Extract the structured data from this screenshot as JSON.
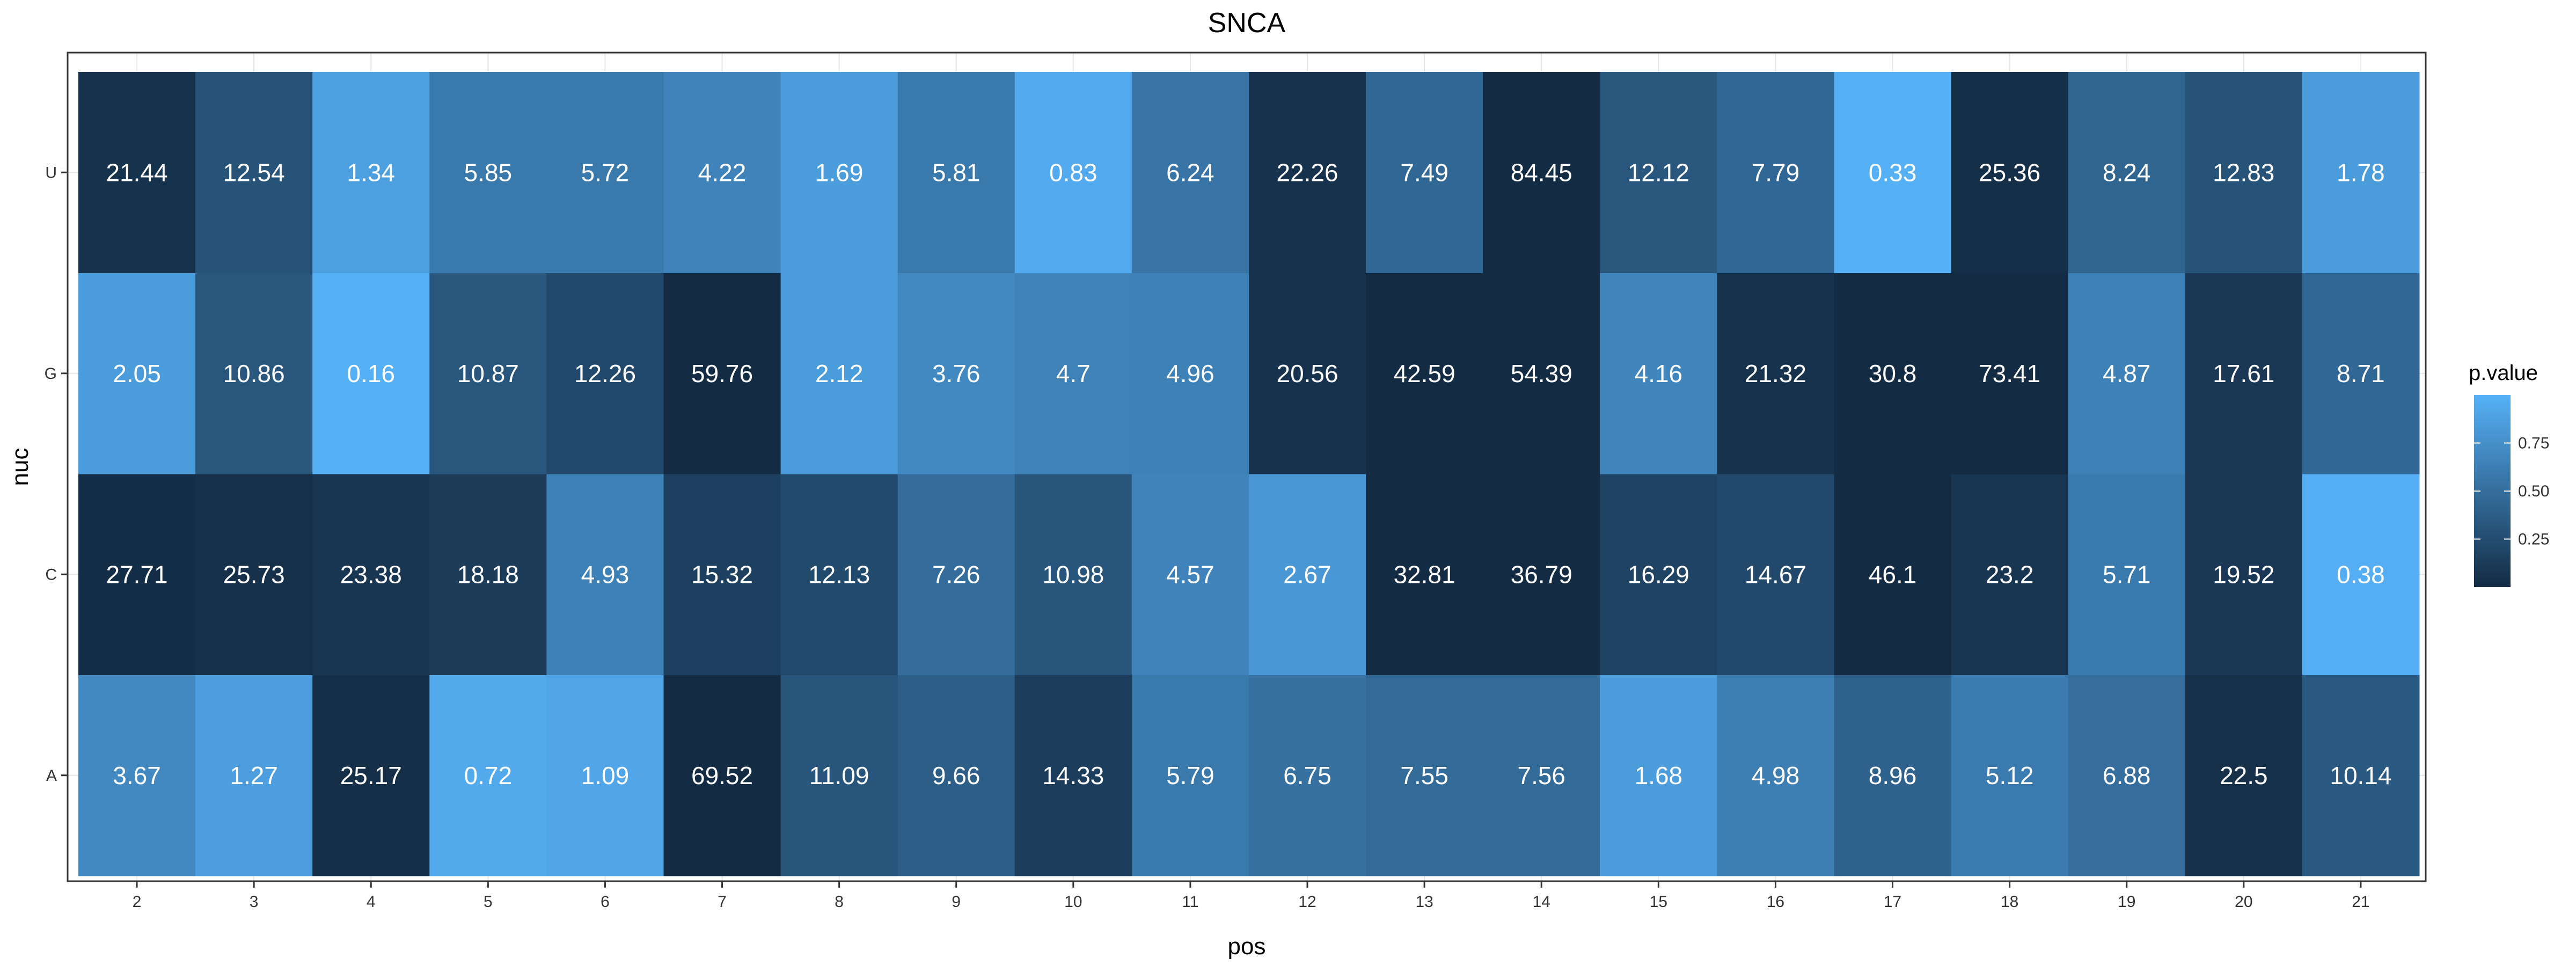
{
  "chart_data": {
    "type": "heatmap",
    "title": "SNCA",
    "xlabel": "pos",
    "ylabel": "nuc",
    "x": [
      "2",
      "3",
      "4",
      "5",
      "6",
      "7",
      "8",
      "9",
      "10",
      "11",
      "12",
      "13",
      "14",
      "15",
      "16",
      "17",
      "18",
      "19",
      "20",
      "21"
    ],
    "y": [
      "A",
      "C",
      "G",
      "U"
    ],
    "labels": {
      "U": [
        "21.44",
        "12.54",
        "1.34",
        "5.85",
        "5.72",
        "4.22",
        "1.69",
        "5.81",
        "0.83",
        "6.24",
        "22.26",
        "7.49",
        "84.45",
        "12.12",
        "7.79",
        "0.33",
        "25.36",
        "8.24",
        "12.83",
        "1.78"
      ],
      "G": [
        "2.05",
        "10.86",
        "0.16",
        "10.87",
        "12.26",
        "59.76",
        "2.12",
        "3.76",
        "4.7",
        "4.96",
        "20.56",
        "42.59",
        "54.39",
        "4.16",
        "21.32",
        "30.8",
        "73.41",
        "4.87",
        "17.61",
        "8.71"
      ],
      "C": [
        "27.71",
        "25.73",
        "23.38",
        "18.18",
        "4.93",
        "15.32",
        "12.13",
        "7.26",
        "10.98",
        "4.57",
        "2.67",
        "32.81",
        "36.79",
        "16.29",
        "14.67",
        "46.1",
        "23.2",
        "5.71",
        "19.52",
        "0.38"
      ],
      "A": [
        "3.67",
        "1.27",
        "25.17",
        "0.72",
        "1.09",
        "69.52",
        "11.09",
        "9.66",
        "14.33",
        "5.79",
        "6.75",
        "7.55",
        "7.56",
        "1.68",
        "4.98",
        "8.96",
        "5.12",
        "6.88",
        "22.5",
        "10.14"
      ]
    },
    "fill": {
      "U": [
        0.05,
        0.3,
        0.87,
        0.58,
        0.58,
        0.66,
        0.85,
        0.58,
        0.95,
        0.55,
        0.05,
        0.45,
        0.0,
        0.33,
        0.45,
        0.99,
        0.03,
        0.43,
        0.3,
        0.84
      ],
      "G": [
        0.84,
        0.32,
        0.99,
        0.32,
        0.22,
        0.0,
        0.84,
        0.7,
        0.65,
        0.64,
        0.05,
        0.0,
        0.0,
        0.67,
        0.05,
        0.0,
        0.0,
        0.64,
        0.1,
        0.45
      ],
      "C": [
        0.02,
        0.04,
        0.08,
        0.13,
        0.64,
        0.16,
        0.23,
        0.49,
        0.31,
        0.66,
        0.81,
        0.0,
        0.0,
        0.18,
        0.22,
        0.0,
        0.08,
        0.58,
        0.1,
        0.98
      ],
      "A": [
        0.7,
        0.86,
        0.03,
        0.94,
        0.92,
        0.0,
        0.31,
        0.38,
        0.14,
        0.58,
        0.52,
        0.47,
        0.47,
        0.85,
        0.62,
        0.4,
        0.6,
        0.5,
        0.04,
        0.35
      ]
    },
    "legend": {
      "title": "p.value",
      "ticks": [
        "0.25",
        "0.50",
        "0.75"
      ],
      "tick_values": [
        0.25,
        0.5,
        0.75
      ],
      "range": [
        0,
        1
      ],
      "position": "right"
    },
    "colors": {
      "low": "#132B43",
      "high": "#56B1F7",
      "text": "#ffffff"
    },
    "grid": true
  }
}
